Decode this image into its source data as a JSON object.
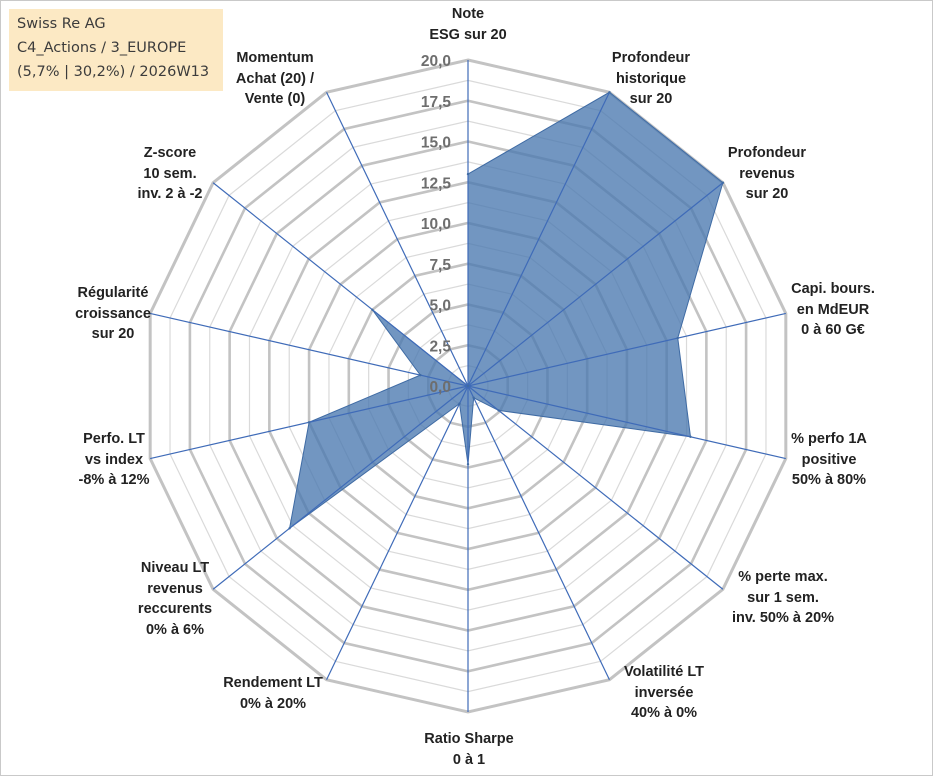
{
  "info": {
    "line1": "Swiss Re AG",
    "line2": "C4_Actions / 3_EUROPE",
    "line3": "(5,7% | 30,2%) / 2026W13"
  },
  "chart_data": {
    "type": "radar",
    "rmin": 0,
    "rmax": 20,
    "step": 2.5,
    "tick_labels": [
      "0,0",
      "2,5",
      "5,0",
      "7,5",
      "10,0",
      "12,5",
      "15,0",
      "17,5",
      "20,0"
    ],
    "axes": [
      {
        "lines": [
          "Note",
          "ESG sur 20"
        ],
        "value": 13
      },
      {
        "lines": [
          "Profondeur",
          "historique",
          "sur 20"
        ],
        "value": 20
      },
      {
        "lines": [
          "Profondeur",
          "revenus",
          "sur 20"
        ],
        "value": 20
      },
      {
        "lines": [
          "Capi. bours.",
          "en MdEUR",
          "0 à 60 G€"
        ],
        "value": 13.2
      },
      {
        "lines": [
          "% perfo 1A",
          "positive",
          "50% à 80%"
        ],
        "value": 14
      },
      {
        "lines": [
          "% perte max.",
          "sur 1 sem.",
          "inv. 50% à 20%"
        ],
        "value": 2.4
      },
      {
        "lines": [
          "Volatilité LT",
          "inversée",
          "40% à 0%"
        ],
        "value": 0.8
      },
      {
        "lines": [
          "Ratio Sharpe",
          "0 à 1"
        ],
        "value": 4.8
      },
      {
        "lines": [
          "Rendement LT",
          "0% à 20%"
        ],
        "value": 1.2
      },
      {
        "lines": [
          "Niveau LT",
          "revenus",
          "reccurents",
          "0% à 6%"
        ],
        "value": 14
      },
      {
        "lines": [
          "Perfo. LT",
          "vs index",
          "-8% à 12%"
        ],
        "value": 10
      },
      {
        "lines": [
          "Régularité",
          "croissance",
          "sur 20"
        ],
        "value": 3
      },
      {
        "lines": [
          "Z-score",
          "10 sem.",
          "inv. 2 à -2"
        ],
        "value": 7.5
      },
      {
        "lines": [
          "Momentum",
          "Achat (20) /",
          "Vente (0)"
        ],
        "value": 0
      }
    ],
    "colors": {
      "fill": "#4a79b0",
      "stroke": "#3f6ba4",
      "spoke": "#3f6bb8",
      "ring": "#c3c3c3",
      "minor_ring": "#dadada"
    }
  }
}
